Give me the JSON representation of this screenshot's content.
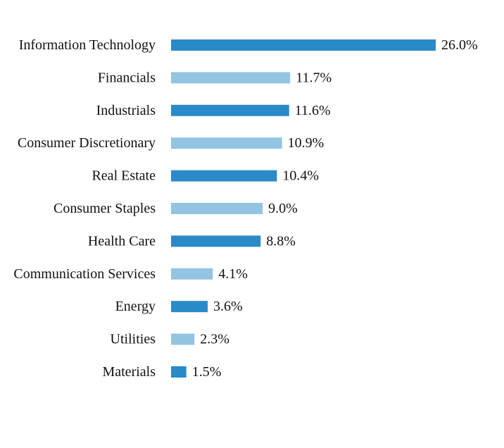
{
  "chart_data": {
    "type": "bar",
    "orientation": "horizontal",
    "title": "",
    "xlabel": "",
    "ylabel": "",
    "categories": [
      "Information Technology",
      "Financials",
      "Industrials",
      "Consumer Discretionary",
      "Real Estate",
      "Consumer Staples",
      "Health Care",
      "Communication Services",
      "Energy",
      "Utilities",
      "Materials"
    ],
    "values": [
      26.0,
      11.7,
      11.6,
      10.9,
      10.4,
      9.0,
      8.8,
      4.1,
      3.6,
      2.3,
      1.5
    ],
    "value_labels": [
      "26.0%",
      "11.7%",
      "11.6%",
      "10.9%",
      "10.4%",
      "9.0%",
      "8.8%",
      "4.1%",
      "3.6%",
      "2.3%",
      "1.5%"
    ],
    "xlim": [
      0,
      26.0
    ],
    "grid": false,
    "legend": "none",
    "colors": {
      "dark_bar": "#2a8ac8",
      "light_bar": "#93c4e2",
      "text": "#111111"
    }
  }
}
